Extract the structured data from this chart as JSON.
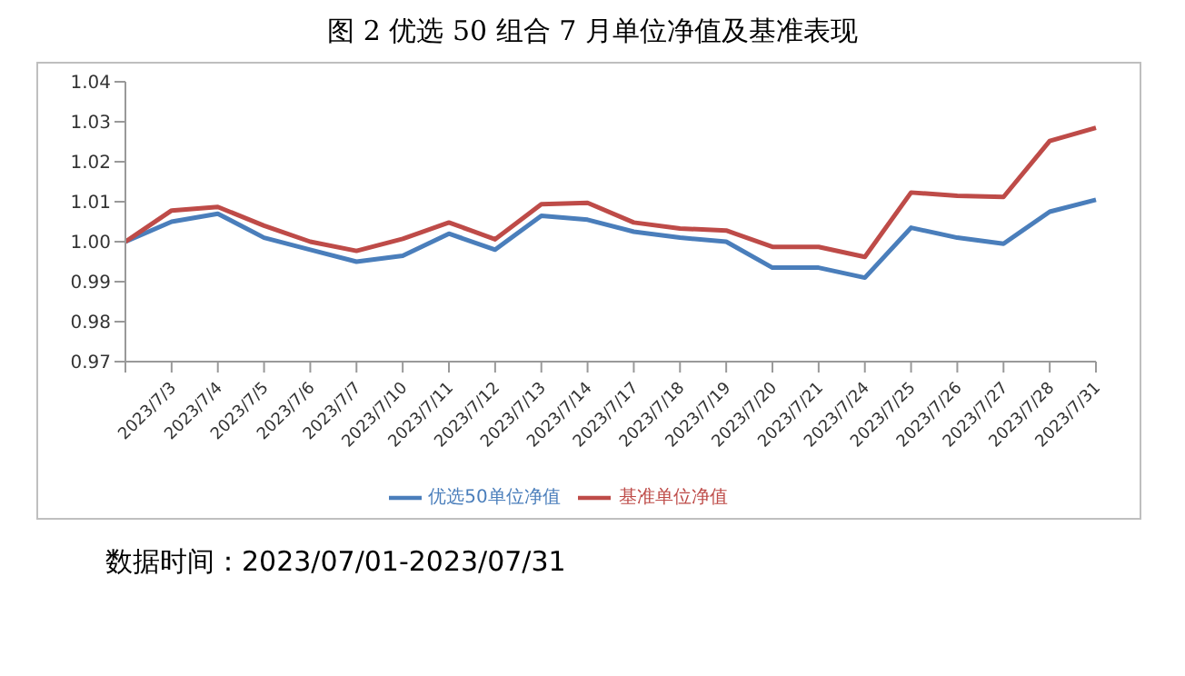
{
  "chart_data": {
    "type": "line",
    "title": "图 2 优选 50 组合 7 月单位净值及基准表现",
    "categories": [
      null,
      "2023/7/3",
      "2023/7/4",
      "2023/7/5",
      "2023/7/6",
      "2023/7/7",
      "2023/7/10",
      "2023/7/11",
      "2023/7/12",
      "2023/7/13",
      "2023/7/14",
      "2023/7/17",
      "2023/7/18",
      "2023/7/19",
      "2023/7/20",
      "2023/7/21",
      "2023/7/24",
      "2023/7/25",
      "2023/7/26",
      "2023/7/27",
      "2023/7/28",
      "2023/7/31"
    ],
    "series": [
      {
        "name": "优选50单位净值",
        "color": "#4a7ebb",
        "values": [
          1.0,
          1.005,
          1.007,
          1.001,
          0.998,
          0.995,
          0.9965,
          1.002,
          0.998,
          1.0065,
          1.0055,
          1.0025,
          1.001,
          1.0,
          0.9935,
          0.9935,
          0.991,
          1.0035,
          1.001,
          0.9995,
          1.0075,
          1.0105
        ]
      },
      {
        "name": "基准单位净值",
        "color": "#be4b48",
        "values": [
          1.0,
          1.0078,
          1.0087,
          1.004,
          1.0,
          0.9977,
          1.0007,
          1.0048,
          1.0006,
          1.0094,
          1.0097,
          1.0048,
          1.0033,
          1.0028,
          0.9987,
          0.9987,
          0.9962,
          1.0123,
          1.0115,
          1.0112,
          1.0252,
          1.0285
        ]
      }
    ],
    "ylim": [
      0.97,
      1.04
    ],
    "yticks": [
      0.97,
      0.98,
      0.99,
      {
        "value": 1,
        "label": "1.00"
      },
      1.01,
      1.02,
      1.03,
      1.04
    ],
    "grid": false,
    "legend": "bottom",
    "marker": "none",
    "line_style": "solid",
    "annotations": [
      "数据时间：2023/07/01-2023/07/31"
    ]
  }
}
